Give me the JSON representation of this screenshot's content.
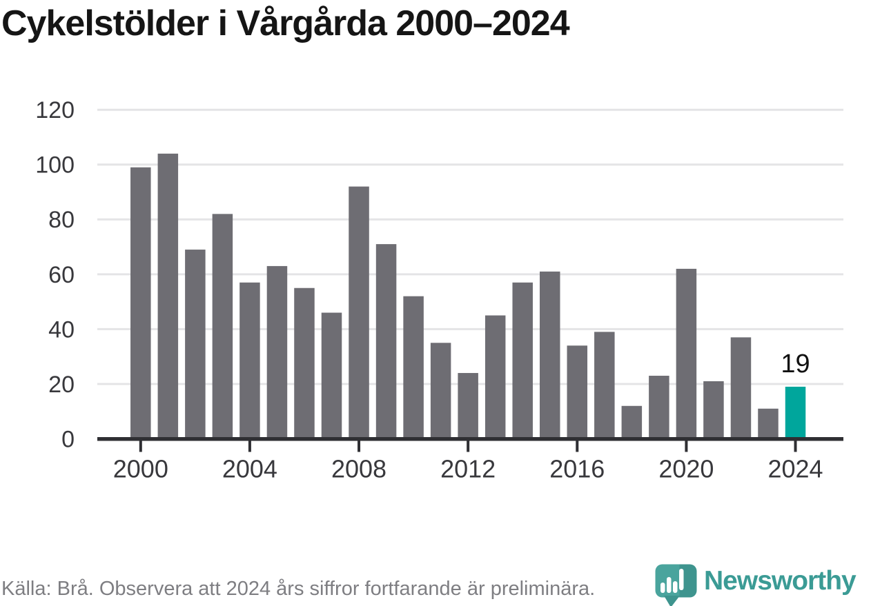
{
  "title": "Cykelstölder i Vårgårda 2000–2024",
  "chart_data": {
    "type": "bar",
    "title": "Cykelstölder i Vårgårda 2000–2024",
    "categories": [
      2000,
      2001,
      2002,
      2003,
      2004,
      2005,
      2006,
      2007,
      2008,
      2009,
      2010,
      2011,
      2012,
      2013,
      2014,
      2015,
      2016,
      2017,
      2018,
      2019,
      2020,
      2021,
      2022,
      2023,
      2024
    ],
    "values": [
      99,
      104,
      69,
      82,
      57,
      63,
      55,
      46,
      92,
      71,
      52,
      35,
      24,
      45,
      57,
      61,
      34,
      39,
      12,
      23,
      62,
      21,
      37,
      11,
      19
    ],
    "xlabel": "",
    "ylabel": "",
    "ylim": [
      0,
      120
    ],
    "yticks": [
      0,
      20,
      40,
      60,
      80,
      100,
      120
    ],
    "xtick_labels": [
      "2000",
      "2004",
      "2008",
      "2012",
      "2016",
      "2020",
      "2024"
    ],
    "grid": "horizontal",
    "legend": "none",
    "highlight": {
      "category": 2024,
      "label": "19"
    },
    "colors": {
      "bar": "#6E6D73",
      "highlight_bar": "#00A69C",
      "gridline": "#E4E4E6",
      "axis": "#2F2F33",
      "tick_label": "#38383C",
      "annotation": "#111111"
    }
  },
  "footer": {
    "source_note": "Källa: Brå. Observera att 2024 års siffror fortfarande är preliminära."
  },
  "branding": {
    "wordmark": "Newsworthy",
    "icon": "newsworthy-pin-bar-chart-icon",
    "color": "#3B9B95"
  }
}
